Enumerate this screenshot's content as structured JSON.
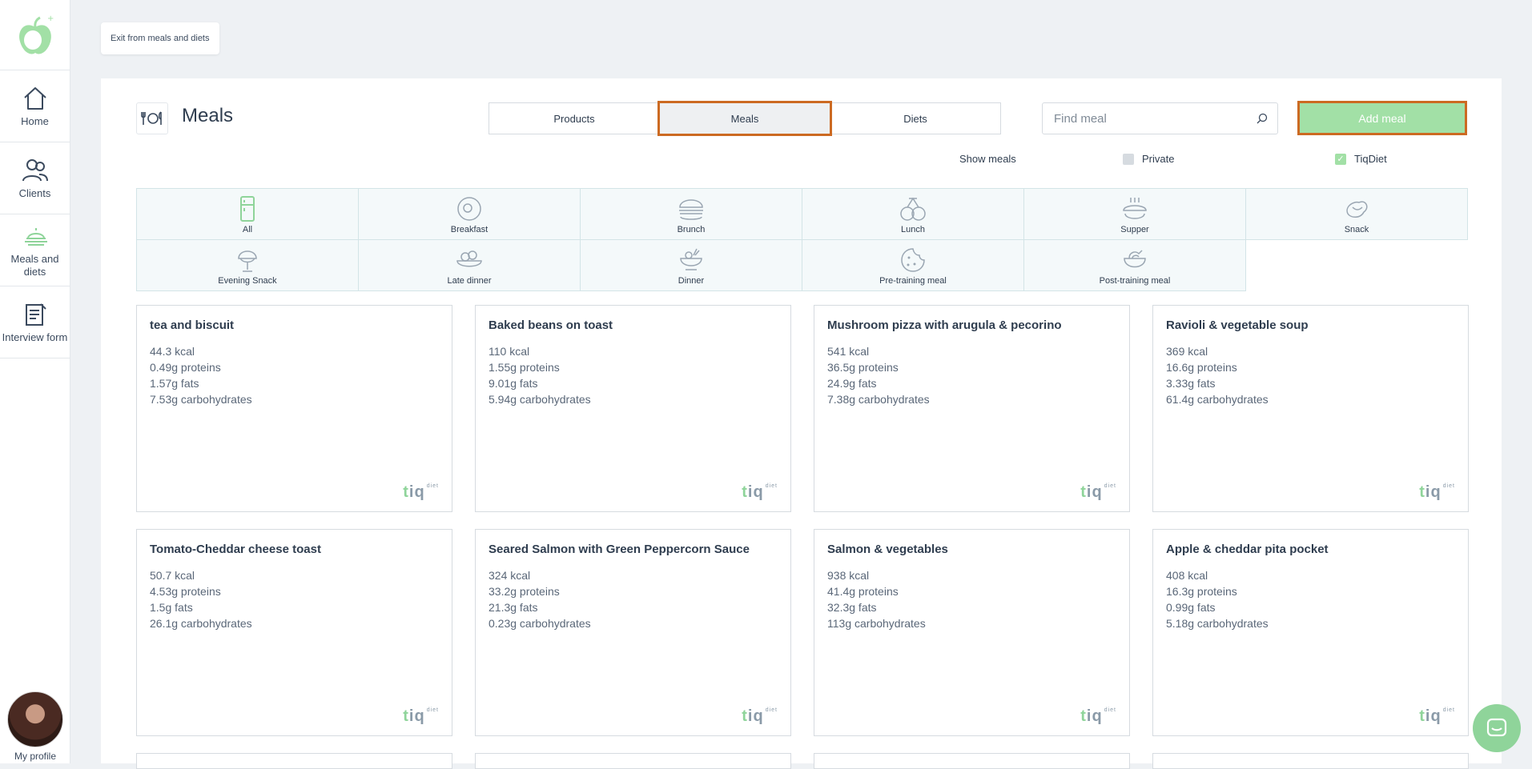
{
  "sidebar": {
    "items": [
      {
        "label": "Home",
        "icon": "home-icon"
      },
      {
        "label": "Clients",
        "icon": "users-icon"
      },
      {
        "label": "Meals and diets",
        "icon": "meals-icon"
      },
      {
        "label": "Interview form",
        "icon": "form-icon"
      }
    ],
    "profile_label": "My profile"
  },
  "exit_label": "Exit from meals and diets",
  "header": {
    "title": "Meals",
    "tabs": [
      "Products",
      "Meals",
      "Diets"
    ],
    "active_tab": "Meals",
    "search_placeholder": "Find meal",
    "add_label": "Add meal"
  },
  "filters": {
    "label": "Show meals",
    "private_label": "Private",
    "private_checked": false,
    "tiqdiet_label": "TiqDiet",
    "tiqdiet_checked": true
  },
  "categories": [
    "All",
    "Breakfast",
    "Brunch",
    "Lunch",
    "Supper",
    "Snack",
    "Evening Snack",
    "Late dinner",
    "Dinner",
    "Pre-training meal",
    "Post-training meal"
  ],
  "meals": [
    {
      "name": "tea and biscuit",
      "kcal": "44.3 kcal",
      "proteins": "0.49g proteins",
      "fats": "1.57g fats",
      "carbs": "7.53g carbohydrates"
    },
    {
      "name": "Baked beans on toast",
      "kcal": "110 kcal",
      "proteins": "1.55g proteins",
      "fats": "9.01g fats",
      "carbs": "5.94g carbohydrates"
    },
    {
      "name": "Mushroom pizza with arugula & pecorino",
      "kcal": "541 kcal",
      "proteins": "36.5g proteins",
      "fats": "24.9g fats",
      "carbs": "7.38g carbohydrates"
    },
    {
      "name": "Ravioli & vegetable soup",
      "kcal": "369 kcal",
      "proteins": "16.6g proteins",
      "fats": "3.33g fats",
      "carbs": "61.4g carbohydrates"
    },
    {
      "name": "Tomato-Cheddar cheese toast",
      "kcal": "50.7 kcal",
      "proteins": "4.53g proteins",
      "fats": "1.5g fats",
      "carbs": "26.1g carbohydrates"
    },
    {
      "name": "Seared Salmon with Green Peppercorn Sauce",
      "kcal": "324 kcal",
      "proteins": "33.2g proteins",
      "fats": "21.3g fats",
      "carbs": "0.23g carbohydrates"
    },
    {
      "name": "Salmon & vegetables",
      "kcal": "938 kcal",
      "proteins": "41.4g proteins",
      "fats": "32.3g fats",
      "carbs": "113g carbohydrates"
    },
    {
      "name": "Apple & cheddar pita pocket",
      "kcal": "408 kcal",
      "proteins": "16.3g proteins",
      "fats": "0.99g fats",
      "carbs": "5.18g carbohydrates"
    }
  ],
  "brand": {
    "prefix": "t",
    "rest": "iq",
    "sup": "diet"
  },
  "colors": {
    "accent": "#a2e0a6",
    "highlight": "#cc6a22",
    "text": "#2f3d4f"
  }
}
